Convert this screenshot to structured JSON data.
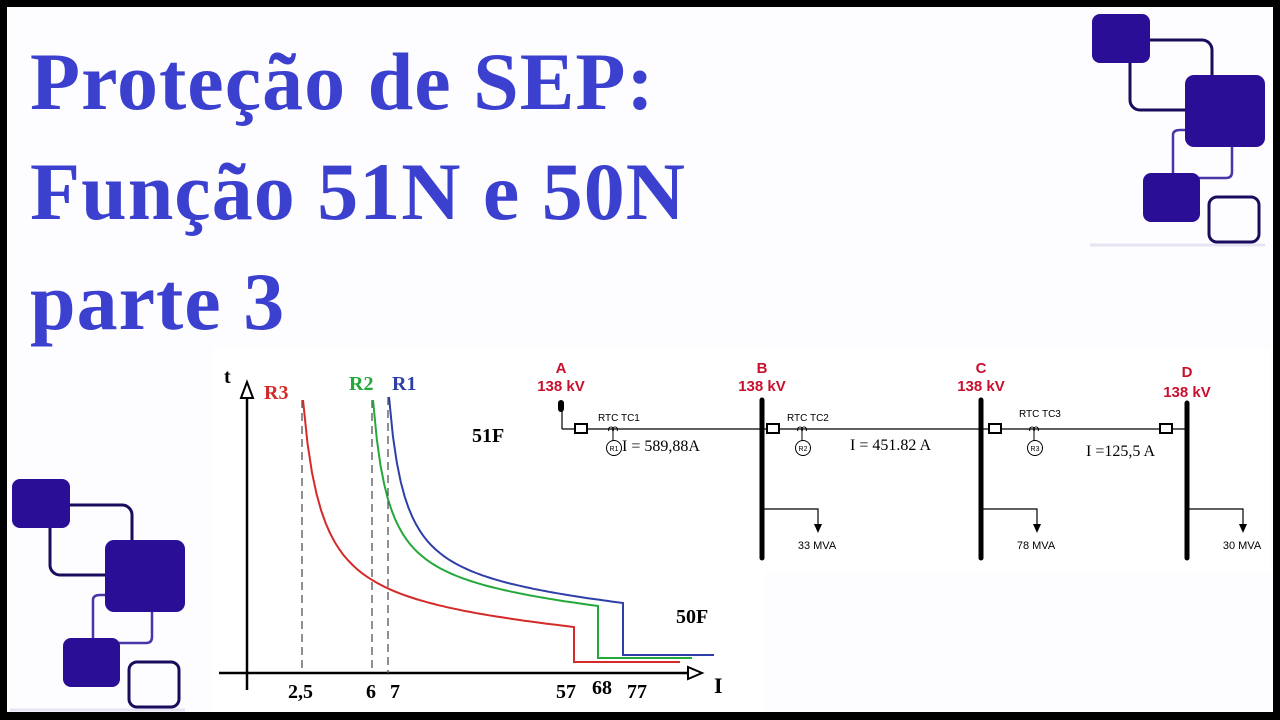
{
  "title": {
    "lines": [
      "Proteção de SEP:",
      "Função 51N e 50N",
      "parte 3"
    ],
    "color": "#3b40cf"
  },
  "decoration": {
    "fill": "#2a0e96",
    "outline": "#1a0c5c"
  },
  "chart_data": {
    "type": "line",
    "xlabel": "I",
    "ylabel": "t",
    "x_ticks": [
      "2,5",
      "6",
      "7",
      "57",
      "68",
      "77"
    ],
    "annotations": [
      "51F",
      "50F"
    ],
    "grid": false,
    "series": [
      {
        "name": "R3",
        "color": "#d42a2a",
        "pickup": 2.5,
        "instantaneous": 57
      },
      {
        "name": "R2",
        "color": "#25a83a",
        "pickup": 6,
        "instantaneous": 68
      },
      {
        "name": "R1",
        "color": "#2e3fa8",
        "pickup": 7,
        "instantaneous": 77
      }
    ]
  },
  "diagram": {
    "label_color": "#c8102e",
    "buses": [
      {
        "name": "A",
        "voltage": "138 kV"
      },
      {
        "name": "B",
        "voltage": "138 kV",
        "load": "33 MVA"
      },
      {
        "name": "C",
        "voltage": "138 kV",
        "load": "78 MVA"
      },
      {
        "name": "D",
        "voltage": "138 kV",
        "load": "30 MVA"
      }
    ],
    "cts": [
      {
        "label": "RTC TC1",
        "relay": "R1",
        "current": "I = 589,88A"
      },
      {
        "label": "RTC TC2",
        "relay": "R2",
        "current": "I = 451.82 A"
      },
      {
        "label": "RTC TC3",
        "relay": "R3",
        "current": "I =125,5 A"
      }
    ]
  }
}
